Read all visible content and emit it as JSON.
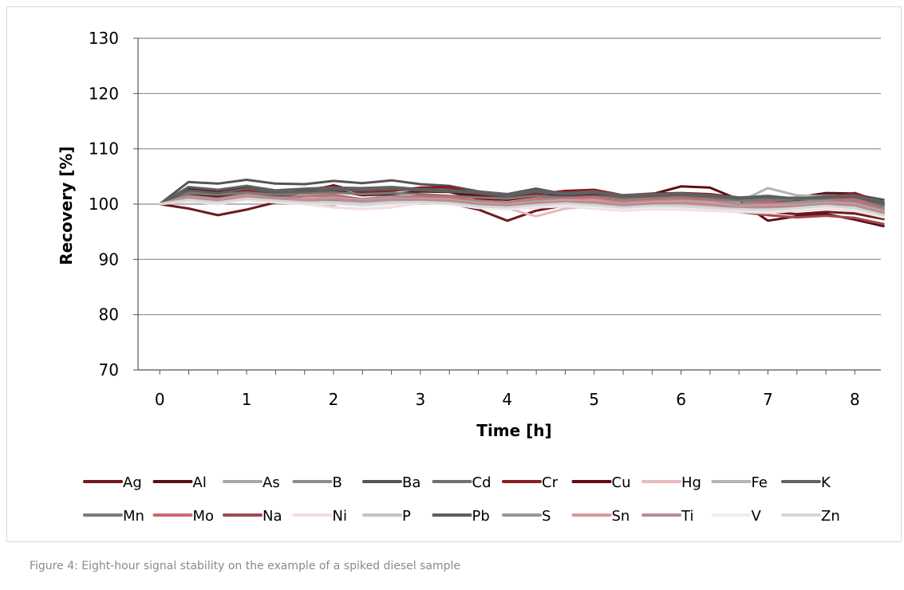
{
  "figure": {
    "caption": "Figure 4: Eight-hour signal stability on the example of a spiked diesel sample"
  },
  "chart_data": {
    "type": "line",
    "title": "",
    "xlabel": "Time [h]",
    "ylabel": "Recovery  [%]",
    "xlim": [
      -0.25,
      8.3
    ],
    "ylim": [
      70,
      130
    ],
    "x_ticks": [
      "0",
      "1",
      "2",
      "3",
      "4",
      "5",
      "6",
      "7",
      "8"
    ],
    "y_ticks": [
      "70",
      "80",
      "90",
      "100",
      "110",
      "120",
      "130"
    ],
    "grid": "horizontal",
    "legend_position": "bottom",
    "x": [
      0,
      0.33,
      0.67,
      1.0,
      1.33,
      1.67,
      2.0,
      2.33,
      2.67,
      3.0,
      3.33,
      3.67,
      4.0,
      4.33,
      4.67,
      5.0,
      5.33,
      5.67,
      6.0,
      6.33,
      6.67,
      7.0,
      7.33,
      7.67,
      8.0,
      8.33
    ],
    "series": [
      {
        "name": "Ag",
        "color": "#6e1a1d",
        "values": [
          100,
          99.2,
          98.0,
          99.0,
          100.3,
          100.8,
          101.2,
          100.5,
          100.8,
          101.5,
          100.2,
          99.0,
          97.0,
          98.8,
          99.8,
          100.2,
          100.3,
          100.8,
          101.3,
          100.8,
          100.0,
          98.6,
          98.2,
          98.6,
          98.3,
          97.3
        ]
      },
      {
        "name": "Al",
        "color": "#5a1014",
        "values": [
          100,
          102.8,
          102.3,
          103.2,
          102.0,
          102.2,
          103.4,
          102.1,
          102.5,
          102.9,
          102.6,
          101.4,
          100.8,
          101.6,
          102.3,
          102.2,
          101.2,
          101.8,
          103.2,
          103.0,
          100.8,
          100.6,
          101.2,
          102.0,
          101.9,
          99.8
        ]
      },
      {
        "name": "As",
        "color": "#a8a8a8",
        "values": [
          100,
          101.0,
          100.6,
          101.4,
          101.0,
          100.4,
          99.8,
          100.8,
          101.6,
          101.2,
          100.4,
          100.1,
          99.8,
          100.6,
          100.9,
          100.3,
          100.0,
          100.6,
          100.8,
          100.3,
          100.0,
          99.6,
          100.1,
          100.8,
          100.2,
          98.8
        ]
      },
      {
        "name": "B",
        "color": "#8c8c8c",
        "values": [
          100,
          101.6,
          101.1,
          101.8,
          101.3,
          100.8,
          101.4,
          100.9,
          101.4,
          101.0,
          100.6,
          100.3,
          100.1,
          100.9,
          101.4,
          100.7,
          100.4,
          100.9,
          101.1,
          100.8,
          100.4,
          100.1,
          100.6,
          101.0,
          100.5,
          99.3
        ]
      },
      {
        "name": "Ba",
        "color": "#555555",
        "values": [
          100,
          104.0,
          103.7,
          104.4,
          103.7,
          103.6,
          104.2,
          103.8,
          104.3,
          103.6,
          103.3,
          102.3,
          101.8,
          102.8,
          101.8,
          102.2,
          101.4,
          101.6,
          101.8,
          101.2,
          100.9,
          100.5,
          100.8,
          101.3,
          101.7,
          100.8
        ]
      },
      {
        "name": "Cd",
        "color": "#707070",
        "values": [
          100,
          102.3,
          101.8,
          102.6,
          101.9,
          102.4,
          102.7,
          102.6,
          102.4,
          102.8,
          103.0,
          101.9,
          101.6,
          102.0,
          101.5,
          101.8,
          101.6,
          101.6,
          101.4,
          101.7,
          101.2,
          101.0,
          101.2,
          101.6,
          101.4,
          99.8
        ]
      },
      {
        "name": "Cr",
        "color": "#8b1c22",
        "values": [
          100,
          102.0,
          101.4,
          102.4,
          101.7,
          102.6,
          103.2,
          102.0,
          102.4,
          103.0,
          103.1,
          101.8,
          101.2,
          101.8,
          102.4,
          102.6,
          101.6,
          101.9,
          102.0,
          101.8,
          101.2,
          101.3,
          100.8,
          101.2,
          102.0,
          100.2
        ]
      },
      {
        "name": "Cu",
        "color": "#5c0d10",
        "values": [
          100,
          101.8,
          101.2,
          101.9,
          101.4,
          102.0,
          102.5,
          101.6,
          101.8,
          102.3,
          102.2,
          101.0,
          100.8,
          101.4,
          101.6,
          101.7,
          101.0,
          101.4,
          101.6,
          101.2,
          100.5,
          97.0,
          97.8,
          98.2,
          97.2,
          96.0
        ]
      },
      {
        "name": "Hg",
        "color": "#e8b9be",
        "values": [
          100,
          100.8,
          100.2,
          101.0,
          100.6,
          100.2,
          100.0,
          100.2,
          100.6,
          100.8,
          100.4,
          99.6,
          99.3,
          97.8,
          99.2,
          99.6,
          99.4,
          99.9,
          99.8,
          99.5,
          99.1,
          98.6,
          98.9,
          99.4,
          99.1,
          97.9
        ]
      },
      {
        "name": "Fe",
        "color": "#b4b4b4",
        "values": [
          100,
          101.3,
          100.9,
          101.6,
          101.2,
          100.9,
          101.2,
          100.9,
          101.3,
          101.0,
          100.9,
          100.6,
          100.2,
          100.8,
          101.0,
          100.8,
          100.6,
          100.7,
          101.0,
          100.7,
          100.4,
          102.9,
          101.6,
          101.4,
          101.0,
          99.4
        ]
      },
      {
        "name": "K",
        "color": "#626262",
        "values": [
          100,
          103.1,
          102.6,
          103.3,
          102.5,
          102.8,
          103.0,
          102.9,
          103.1,
          102.7,
          102.5,
          102.2,
          101.8,
          102.4,
          102.0,
          102.3,
          101.6,
          101.8,
          101.9,
          101.6,
          101.2,
          101.5,
          101.0,
          101.4,
          101.6,
          100.4
        ]
      },
      {
        "name": "Mn",
        "color": "#7a7a7a",
        "values": [
          100,
          102.0,
          101.7,
          102.1,
          101.7,
          101.9,
          102.1,
          101.8,
          102.0,
          101.8,
          101.5,
          101.2,
          101.0,
          101.5,
          101.2,
          101.4,
          101.0,
          101.2,
          101.4,
          101.0,
          100.6,
          100.7,
          100.9,
          101.0,
          100.8,
          99.6
        ]
      },
      {
        "name": "Mo",
        "color": "#c96a70",
        "values": [
          100,
          101.5,
          101.0,
          101.8,
          101.2,
          101.4,
          101.7,
          100.9,
          101.2,
          101.4,
          101.3,
          100.6,
          100.3,
          100.9,
          101.0,
          101.2,
          100.6,
          100.9,
          101.0,
          100.7,
          100.0,
          100.3,
          100.1,
          100.6,
          100.9,
          99.1
        ]
      },
      {
        "name": "Na",
        "color": "#a04a50",
        "values": [
          100,
          101.0,
          100.5,
          101.2,
          100.8,
          100.6,
          100.8,
          100.3,
          100.6,
          100.7,
          100.5,
          99.8,
          99.4,
          99.9,
          100.2,
          100.3,
          99.7,
          99.9,
          99.5,
          98.9,
          98.6,
          98.0,
          97.6,
          97.9,
          97.5,
          96.4
        ]
      },
      {
        "name": "Ni",
        "color": "#f4dde0",
        "values": [
          100,
          100.5,
          100.0,
          100.8,
          100.3,
          100.0,
          99.4,
          99.1,
          99.4,
          100.2,
          100.0,
          99.3,
          99.1,
          99.4,
          99.6,
          99.2,
          98.8,
          99.1,
          99.0,
          98.8,
          98.6,
          98.4,
          98.8,
          99.2,
          98.8,
          97.6
        ]
      },
      {
        "name": "P",
        "color": "#c4c4c4",
        "values": [
          100,
          100.9,
          100.4,
          101.1,
          100.7,
          100.3,
          100.4,
          100.1,
          100.5,
          100.4,
          100.1,
          99.6,
          99.5,
          99.8,
          100.3,
          99.9,
          99.6,
          99.8,
          99.6,
          99.4,
          99.2,
          99.1,
          99.5,
          99.8,
          99.5,
          98.2
        ]
      },
      {
        "name": "Pb",
        "color": "#5e5e5e",
        "values": [
          100,
          102.5,
          102.0,
          102.8,
          102.1,
          102.3,
          102.6,
          102.5,
          102.7,
          102.5,
          102.3,
          102.0,
          101.4,
          102.2,
          101.7,
          102.0,
          101.3,
          101.5,
          101.7,
          101.4,
          101.0,
          101.3,
          101.0,
          101.2,
          101.3,
          100.0
        ]
      },
      {
        "name": "S",
        "color": "#979797",
        "values": [
          100,
          101.4,
          100.9,
          101.6,
          101.1,
          100.9,
          101.2,
          100.8,
          101.1,
          101.0,
          100.8,
          100.4,
          100.1,
          100.6,
          100.8,
          100.6,
          100.3,
          100.5,
          100.7,
          100.4,
          100.0,
          99.8,
          100.2,
          100.5,
          100.1,
          98.9
        ]
      },
      {
        "name": "Sn",
        "color": "#d49a9e",
        "values": [
          100,
          101.2,
          100.7,
          101.5,
          100.9,
          100.8,
          101.1,
          100.7,
          101.0,
          101.0,
          100.8,
          100.2,
          99.9,
          100.4,
          100.7,
          100.6,
          100.0,
          100.4,
          100.5,
          100.3,
          99.6,
          99.8,
          99.8,
          100.2,
          100.0,
          98.6
        ]
      },
      {
        "name": "Ti",
        "color": "#b38e92",
        "values": [
          100,
          101.1,
          100.6,
          101.3,
          100.9,
          100.6,
          100.9,
          100.5,
          100.8,
          100.8,
          100.6,
          100.0,
          99.7,
          100.2,
          100.4,
          100.3,
          99.8,
          100.1,
          100.2,
          99.9,
          99.4,
          99.5,
          99.6,
          100.0,
          99.8,
          98.4
        ]
      },
      {
        "name": "V",
        "color": "#eeeeee",
        "values": [
          100,
          100.7,
          100.2,
          100.9,
          100.5,
          100.2,
          100.0,
          99.6,
          99.9,
          100.3,
          100.1,
          99.4,
          99.2,
          99.6,
          99.9,
          99.5,
          99.1,
          99.4,
          99.3,
          99.1,
          98.9,
          98.7,
          99.1,
          99.5,
          99.1,
          97.8
        ]
      },
      {
        "name": "Zn",
        "color": "#d6d6d6",
        "values": [
          100,
          100.8,
          100.3,
          101.0,
          100.6,
          100.3,
          100.2,
          99.9,
          100.2,
          100.4,
          100.2,
          99.6,
          99.4,
          99.8,
          100.1,
          99.8,
          99.4,
          99.7,
          99.6,
          99.3,
          99.1,
          98.9,
          99.3,
          99.7,
          99.3,
          98.0
        ]
      }
    ]
  }
}
